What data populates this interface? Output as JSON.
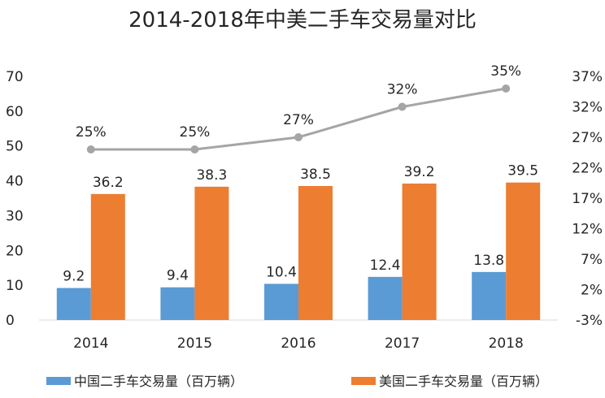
{
  "chart_data": {
    "type": "bar",
    "title": "2014-2018年中美二手车交易量对比",
    "categories": [
      "2014",
      "2015",
      "2016",
      "2017",
      "2018"
    ],
    "series": [
      {
        "name": "中国二手车交易量（百万辆）",
        "type": "bar",
        "axis": "left",
        "color": "#5B9BD5",
        "values": [
          9.2,
          9.4,
          10.4,
          12.4,
          13.8
        ],
        "labels": [
          "9.2",
          "9.4",
          "10.4",
          "12.4",
          "13.8"
        ]
      },
      {
        "name": "美国二手车交易量（百万辆）",
        "type": "bar",
        "axis": "left",
        "color": "#ED7D31",
        "values": [
          36.2,
          38.3,
          38.5,
          39.2,
          39.5
        ],
        "labels": [
          "36.2",
          "38.3",
          "38.5",
          "39.2",
          "39.5"
        ]
      },
      {
        "name": "",
        "type": "line",
        "axis": "right",
        "color": "#A5A5A5",
        "values": [
          25,
          25,
          27,
          32,
          35
        ],
        "labels": [
          "25%",
          "25%",
          "27%",
          "32%",
          "35%"
        ]
      }
    ],
    "y_left": {
      "min": 0,
      "max": 70,
      "ticks": [
        "0",
        "10",
        "20",
        "30",
        "40",
        "50",
        "60",
        "70"
      ]
    },
    "y_right": {
      "min": -3,
      "max": 37,
      "ticks": [
        "-3%",
        "2%",
        "7%",
        "12%",
        "17%",
        "22%",
        "27%",
        "32%",
        "37%"
      ]
    },
    "grid": false,
    "legend_position": "bottom"
  }
}
